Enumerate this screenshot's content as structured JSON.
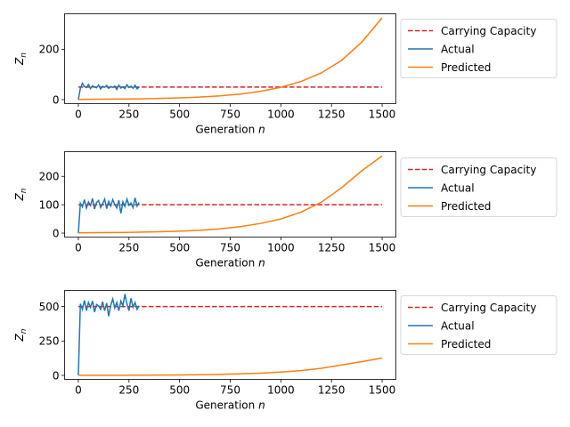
{
  "chart_data": [
    {
      "type": "line",
      "xlabel": "Generation",
      "xlabel_var": "n",
      "ylabel_var": "Z",
      "ylabel_sub": "n",
      "xlim": [
        -68,
        1568
      ],
      "ylim": [
        -16,
        341
      ],
      "xticks": [
        0,
        250,
        500,
        750,
        1000,
        1250,
        1500
      ],
      "yticks": [
        0,
        200
      ],
      "legend": [
        "Carrying Capacity",
        "Actual",
        "Predicted"
      ],
      "legend_position": "outside-right",
      "carrying_capacity": 50,
      "actual": {
        "name": "Actual",
        "color": "#1f77b4",
        "x": [
          0,
          10,
          20,
          30,
          40,
          50,
          60,
          70,
          80,
          90,
          100,
          110,
          120,
          130,
          140,
          150,
          160,
          170,
          180,
          190,
          200,
          210,
          220,
          230,
          240,
          250,
          260,
          270,
          280,
          290,
          300
        ],
        "y": [
          0,
          45,
          65,
          52,
          48,
          60,
          44,
          55,
          50,
          47,
          58,
          42,
          53,
          49,
          56,
          45,
          52,
          48,
          54,
          40,
          57,
          46,
          51,
          44,
          59,
          48,
          53,
          45,
          57,
          43,
          50
        ]
      },
      "predicted": {
        "name": "Predicted",
        "color": "#ff7f0e",
        "x": [
          0,
          100,
          200,
          300,
          400,
          500,
          600,
          700,
          800,
          900,
          1000,
          1100,
          1200,
          1300,
          1400,
          1500
        ],
        "y": [
          1,
          1.5,
          2.1,
          3.2,
          4.7,
          6.9,
          10,
          15,
          22,
          33,
          49,
          72,
          106,
          156,
          229,
          325
        ]
      },
      "cc_color": "#d62728"
    },
    {
      "type": "line",
      "xlabel": "Generation",
      "xlabel_var": "n",
      "ylabel_var": "Z",
      "ylabel_sub": "n",
      "xlim": [
        -68,
        1568
      ],
      "ylim": [
        -14,
        287
      ],
      "xticks": [
        0,
        250,
        500,
        750,
        1000,
        1250,
        1500
      ],
      "yticks": [
        0,
        100,
        200
      ],
      "legend": [
        "Carrying Capacity",
        "Actual",
        "Predicted"
      ],
      "legend_position": "outside-right",
      "carrying_capacity": 100,
      "actual": {
        "name": "Actual",
        "color": "#1f77b4",
        "x": [
          0,
          10,
          20,
          30,
          40,
          50,
          60,
          70,
          80,
          90,
          100,
          110,
          120,
          130,
          140,
          150,
          160,
          170,
          180,
          190,
          200,
          210,
          220,
          230,
          240,
          250,
          260,
          270,
          280,
          290,
          300
        ],
        "y": [
          0,
          105,
          92,
          118,
          88,
          110,
          97,
          122,
          85,
          108,
          115,
          90,
          104,
          120,
          86,
          112,
          95,
          118,
          100,
          89,
          116,
          70,
          110,
          94,
          120,
          98,
          106,
          90,
          124,
          95,
          108
        ]
      },
      "predicted": {
        "name": "Predicted",
        "color": "#ff7f0e",
        "x": [
          0,
          100,
          200,
          300,
          400,
          500,
          600,
          700,
          800,
          900,
          1000,
          1100,
          1200,
          1300,
          1400,
          1500
        ],
        "y": [
          1,
          1.5,
          2.2,
          3.2,
          4.7,
          6.9,
          10,
          15,
          23,
          34,
          50,
          74,
          109,
          160,
          220,
          272
        ]
      },
      "cc_color": "#d62728"
    },
    {
      "type": "line",
      "xlabel": "Generation",
      "xlabel_var": "n",
      "ylabel_var": "Z",
      "ylabel_sub": "n",
      "xlim": [
        -68,
        1568
      ],
      "ylim": [
        -29,
        617
      ],
      "xticks": [
        0,
        250,
        500,
        750,
        1000,
        1250,
        1500
      ],
      "yticks": [
        0,
        250,
        500
      ],
      "legend": [
        "Carrying Capacity",
        "Actual",
        "Predicted"
      ],
      "legend_position": "outside-right",
      "carrying_capacity": 500,
      "actual": {
        "name": "Actual",
        "color": "#1f77b4",
        "x": [
          0,
          10,
          20,
          30,
          40,
          50,
          60,
          70,
          80,
          90,
          100,
          110,
          120,
          130,
          140,
          150,
          160,
          170,
          180,
          190,
          200,
          210,
          220,
          230,
          240,
          250,
          260,
          270,
          280,
          290,
          300
        ],
        "y": [
          0,
          520,
          480,
          545,
          470,
          530,
          495,
          540,
          460,
          515,
          505,
          480,
          535,
          470,
          525,
          430,
          510,
          555,
          490,
          530,
          470,
          540,
          505,
          590,
          520,
          470,
          560,
          495,
          530,
          480,
          505
        ]
      },
      "predicted": {
        "name": "Predicted",
        "color": "#ff7f0e",
        "x": [
          0,
          100,
          200,
          300,
          400,
          500,
          600,
          700,
          800,
          900,
          1000,
          1100,
          1200,
          1300,
          1400,
          1500
        ],
        "y": [
          0.5,
          0.8,
          1.1,
          1.7,
          2.4,
          3.5,
          5.1,
          7.6,
          11,
          16,
          24,
          35,
          52,
          76,
          100,
          126
        ]
      },
      "cc_color": "#d62728"
    }
  ]
}
